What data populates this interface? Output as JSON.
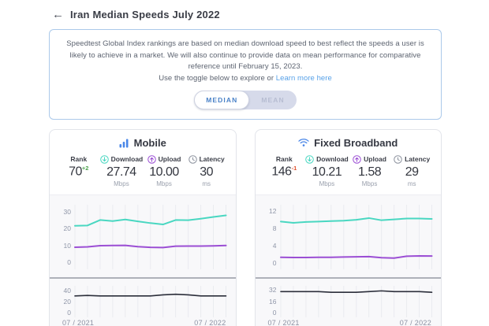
{
  "page": {
    "title": "Iran Median Speeds July 2022",
    "back_glyph": "←"
  },
  "notice": {
    "body": "Speedtest Global Index rankings are based on median download speed to best reflect the speeds a user is likely to achieve in a market. We will also continue to provide data on mean performance for comparative reference until February 15, 2023.",
    "cta": "Use the toggle below to explore or",
    "link_label": "Learn more here"
  },
  "toggle": {
    "median_label": "MEDIAN",
    "mean_label": "MEAN",
    "selected": "MEDIAN"
  },
  "cards": [
    {
      "title": "Mobile",
      "stats": {
        "rank": {
          "label": "Rank",
          "value": "70",
          "delta": "+2"
        },
        "download": {
          "label": "Download",
          "value": "27.74",
          "unit": "Mbps"
        },
        "upload": {
          "label": "Upload",
          "value": "10.00",
          "unit": "Mbps"
        },
        "latency": {
          "label": "Latency",
          "value": "30",
          "unit": "ms"
        }
      }
    },
    {
      "title": "Fixed Broadband",
      "stats": {
        "rank": {
          "label": "Rank",
          "value": "146",
          "delta": "-1"
        },
        "download": {
          "label": "Download",
          "value": "10.21",
          "unit": "Mbps"
        },
        "upload": {
          "label": "Upload",
          "value": "1.58",
          "unit": "Mbps"
        },
        "latency": {
          "label": "Latency",
          "value": "29",
          "unit": "ms"
        }
      }
    }
  ],
  "colors": {
    "accent_blue": "#4a87e8",
    "download_teal": "#49d7c1",
    "upload_purple": "#9b4ed4",
    "latency_dark": "#2b2e3a",
    "rank_up_green": "#4ca24e",
    "rank_down_red": "#e0502e",
    "notice_border_blue": "#abc9ea",
    "link_blue": "#57a1e8"
  },
  "chart_data": [
    {
      "type": "line",
      "name": "mobile-speed-history",
      "x": [
        "07/2021",
        "08/2021",
        "09/2021",
        "10/2021",
        "11/2021",
        "12/2021",
        "01/2022",
        "02/2022",
        "03/2022",
        "04/2022",
        "05/2022",
        "06/2022",
        "07/2022"
      ],
      "series": [
        {
          "name": "Download (Mbps)",
          "color": "#49d7c1",
          "width": 2,
          "values": [
            21.6,
            21.8,
            25.0,
            24.4,
            25.3,
            24.2,
            23.2,
            22.4,
            25.0,
            24.9,
            25.8,
            26.8,
            27.74
          ]
        },
        {
          "name": "Upload (Mbps)",
          "color": "#9b4ed4",
          "width": 2,
          "values": [
            9.0,
            9.2,
            9.9,
            10.0,
            10.1,
            9.3,
            8.9,
            8.8,
            9.6,
            9.7,
            9.7,
            9.8,
            10.0
          ]
        }
      ],
      "ylim": [
        -4,
        34
      ],
      "yticks": [
        0,
        10,
        20,
        30
      ],
      "grid": "vertical",
      "legend": "none"
    },
    {
      "type": "line",
      "name": "mobile-latency-history",
      "x": [
        "07/2021",
        "08/2021",
        "09/2021",
        "10/2021",
        "11/2021",
        "12/2021",
        "01/2022",
        "02/2022",
        "03/2022",
        "04/2022",
        "05/2022",
        "06/2022",
        "07/2022"
      ],
      "series": [
        {
          "name": "Latency (ms)",
          "color": "#2b2e3a",
          "width": 1.6,
          "values": [
            30,
            31,
            30,
            30,
            30,
            30,
            30,
            32,
            33,
            32,
            30,
            30,
            30
          ]
        }
      ],
      "ylim": [
        -8,
        48
      ],
      "yticks": [
        0,
        20,
        40
      ],
      "grid": "vertical",
      "legend": "none",
      "x_axis_labels": [
        "07 / 2021",
        "07 / 2022"
      ]
    },
    {
      "type": "line",
      "name": "fixed-speed-history",
      "x": [
        "07/2021",
        "08/2021",
        "09/2021",
        "10/2021",
        "11/2021",
        "12/2021",
        "01/2022",
        "02/2022",
        "03/2022",
        "04/2022",
        "05/2022",
        "06/2022",
        "07/2022"
      ],
      "series": [
        {
          "name": "Download (Mbps)",
          "color": "#49d7c1",
          "width": 2,
          "values": [
            9.6,
            9.3,
            9.5,
            9.6,
            9.7,
            9.8,
            10.0,
            10.4,
            9.9,
            10.1,
            10.3,
            10.3,
            10.21
          ]
        },
        {
          "name": "Upload (Mbps)",
          "color": "#9b4ed4",
          "width": 2,
          "values": [
            1.3,
            1.25,
            1.25,
            1.3,
            1.3,
            1.35,
            1.4,
            1.45,
            1.2,
            1.1,
            1.55,
            1.6,
            1.58
          ]
        }
      ],
      "ylim": [
        -1.5,
        13.5
      ],
      "yticks": [
        0,
        4,
        8,
        12
      ],
      "grid": "vertical",
      "legend": "none"
    },
    {
      "type": "line",
      "name": "fixed-latency-history",
      "x": [
        "07/2021",
        "08/2021",
        "09/2021",
        "10/2021",
        "11/2021",
        "12/2021",
        "01/2022",
        "02/2022",
        "03/2022",
        "04/2022",
        "05/2022",
        "06/2022",
        "07/2022"
      ],
      "series": [
        {
          "name": "Latency (ms)",
          "color": "#2b2e3a",
          "width": 1.6,
          "values": [
            30,
            30,
            30,
            30,
            29,
            29,
            29,
            30,
            31,
            30,
            30,
            30,
            29
          ]
        }
      ],
      "ylim": [
        -6,
        38
      ],
      "yticks": [
        0,
        16,
        32
      ],
      "grid": "vertical",
      "legend": "none",
      "x_axis_labels": [
        "07 / 2021",
        "07 / 2022"
      ]
    }
  ]
}
